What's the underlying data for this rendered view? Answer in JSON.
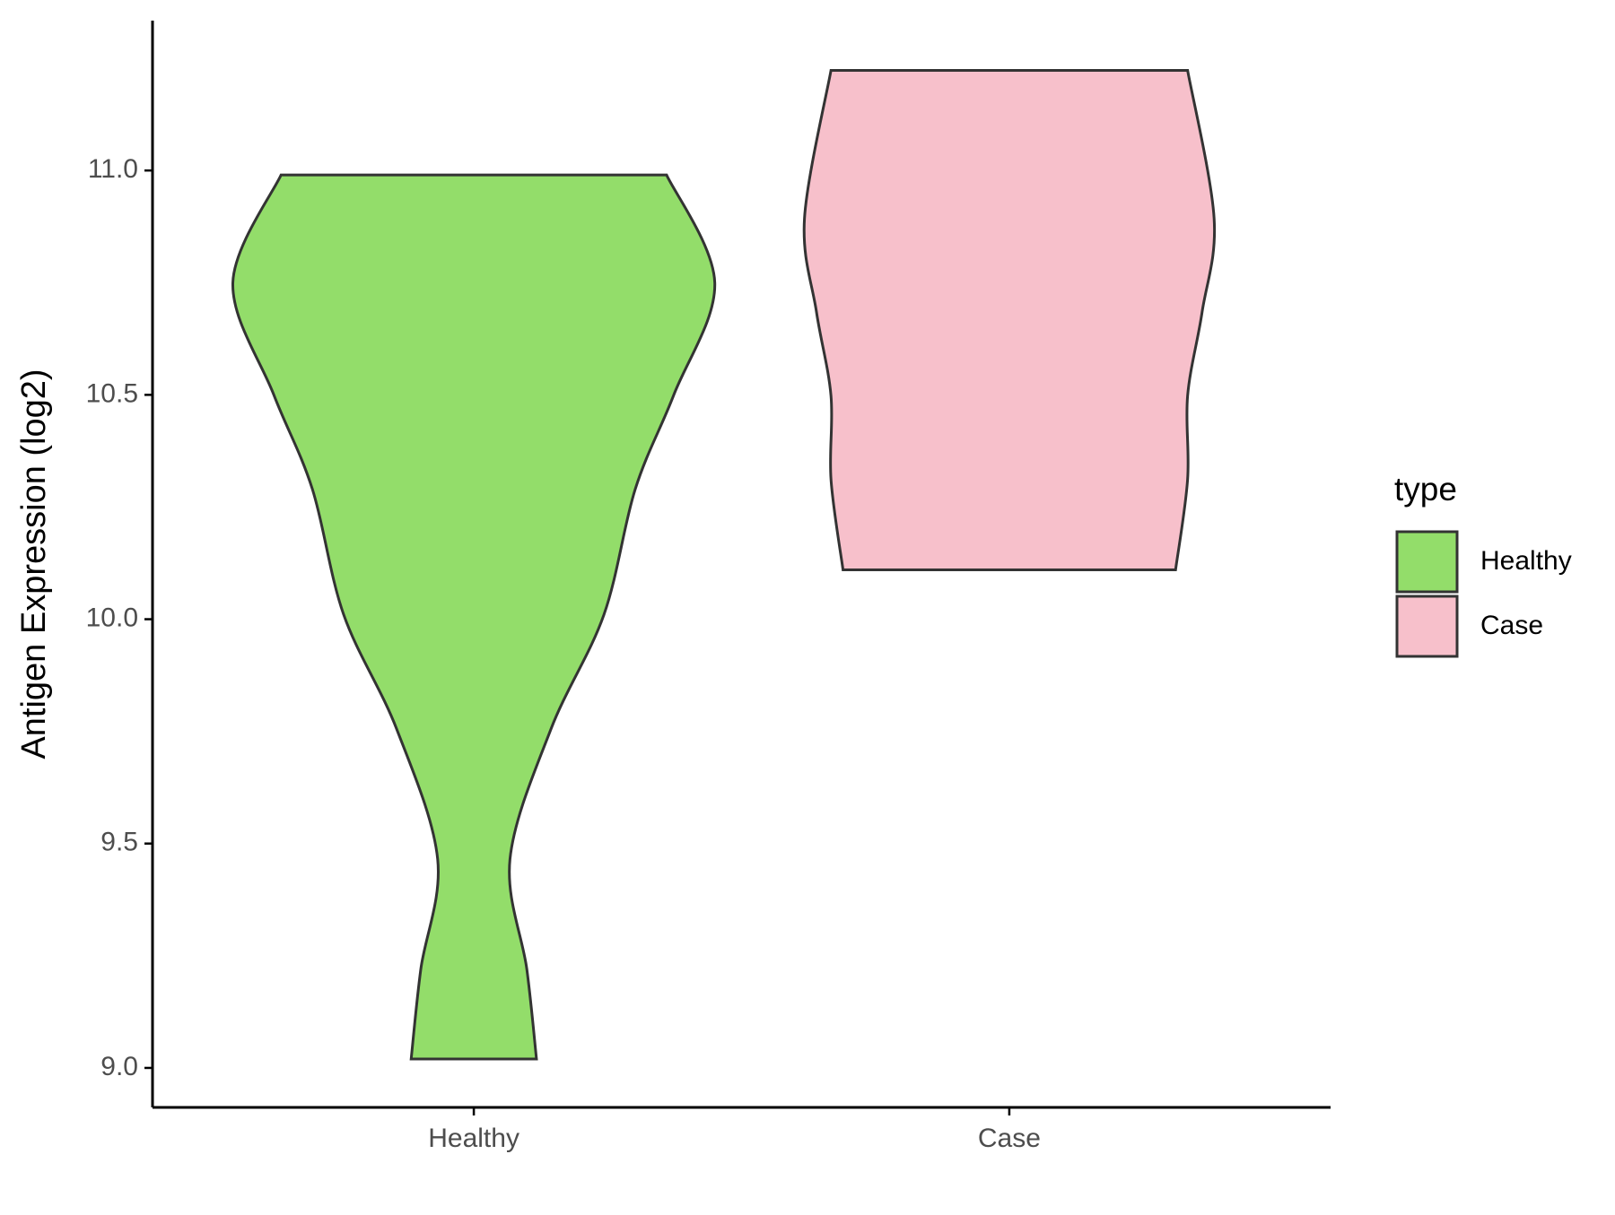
{
  "chart_data": {
    "type": "violin",
    "y_label": "Antigen Expression (log2)",
    "categories": [
      "Healthy",
      "Case"
    ],
    "legend_title": "type",
    "legend_position": "right",
    "series": [
      {
        "name": "Healthy",
        "color": "#93dd6a",
        "y": [
          10.99,
          10.75,
          10.5,
          10.29,
          10.01,
          9.755,
          9.465,
          9.22,
          9.02
        ],
        "width": [
          0.8,
          1.0,
          0.83,
          0.67,
          0.54,
          0.32,
          0.15,
          0.22,
          0.26
        ]
      },
      {
        "name": "Case",
        "color": "#f7c0cb",
        "y": [
          11.223,
          10.893,
          10.684,
          10.498,
          10.312,
          10.11
        ],
        "width": [
          0.74,
          0.85,
          0.8,
          0.74,
          0.74,
          0.69
        ]
      }
    ],
    "ylim": [
      8.912,
      11.334
    ],
    "yticks": [
      {
        "value": 9,
        "label": "9.0"
      },
      9.5,
      {
        "value": 10,
        "label": "10.0"
      },
      10.5,
      {
        "value": 11,
        "label": "11.0"
      }
    ],
    "grid": false
  }
}
